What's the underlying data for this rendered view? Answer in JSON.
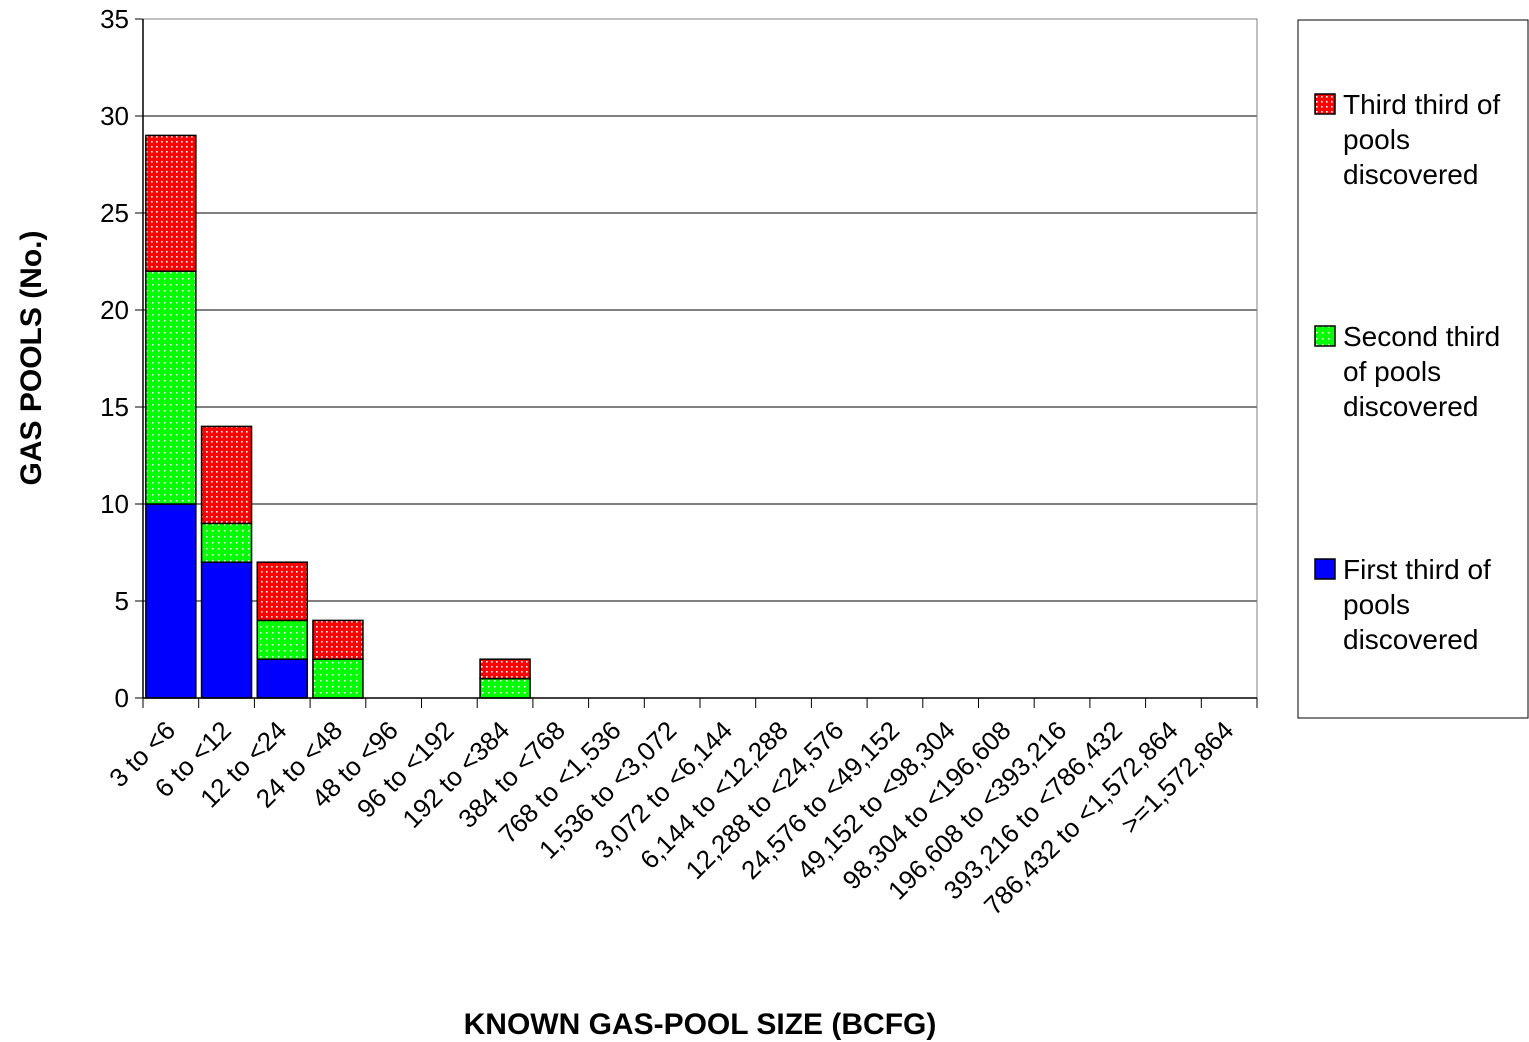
{
  "chart_data": {
    "type": "bar",
    "stacked": true,
    "title": "",
    "xlabel": "KNOWN GAS-POOL SIZE (BCFG)",
    "ylabel": "GAS POOLS (No.)",
    "ylim": [
      0,
      35
    ],
    "yticks": [
      0,
      5,
      10,
      15,
      20,
      25,
      30,
      35
    ],
    "grid": true,
    "legend_position": "right",
    "categories": [
      "3 to <6",
      "6 to <12",
      "12 to <24",
      "24 to <48",
      "48 to <96",
      "96 to <192",
      "192 to <384",
      "384 to <768",
      "768 to <1,536",
      "1,536 to <3,072",
      "3,072 to <6,144",
      "6,144 to <12,288",
      "12,288 to <24,576",
      "24,576 to <49,152",
      "49,152 to <98,304",
      "98,304 to <196,608",
      "196,608 to <393,216",
      "393,216 to <786,432",
      "786,432 to <1,572,864",
      ">=1,572,864"
    ],
    "series": [
      {
        "name": "First third of pools discovered",
        "legend_lines": [
          "First third of",
          "pools",
          "discovered"
        ],
        "color": "#0000ff",
        "pattern": "solid",
        "values": [
          10,
          7,
          2,
          0,
          0,
          0,
          0,
          0,
          0,
          0,
          0,
          0,
          0,
          0,
          0,
          0,
          0,
          0,
          0,
          0
        ]
      },
      {
        "name": "Second third of pools discovered",
        "legend_lines": [
          "Second third",
          "of pools",
          "discovered"
        ],
        "color": "#00ff00",
        "pattern": "dotted",
        "values": [
          12,
          2,
          2,
          2,
          0,
          0,
          1,
          0,
          0,
          0,
          0,
          0,
          0,
          0,
          0,
          0,
          0,
          0,
          0,
          0
        ]
      },
      {
        "name": "Third third of pools discovered",
        "legend_lines": [
          "Third third of",
          "pools",
          "discovered"
        ],
        "color": "#ff0000",
        "pattern": "dotted",
        "values": [
          7,
          5,
          3,
          2,
          0,
          0,
          1,
          0,
          0,
          0,
          0,
          0,
          0,
          0,
          0,
          0,
          0,
          0,
          0,
          0
        ]
      }
    ]
  }
}
